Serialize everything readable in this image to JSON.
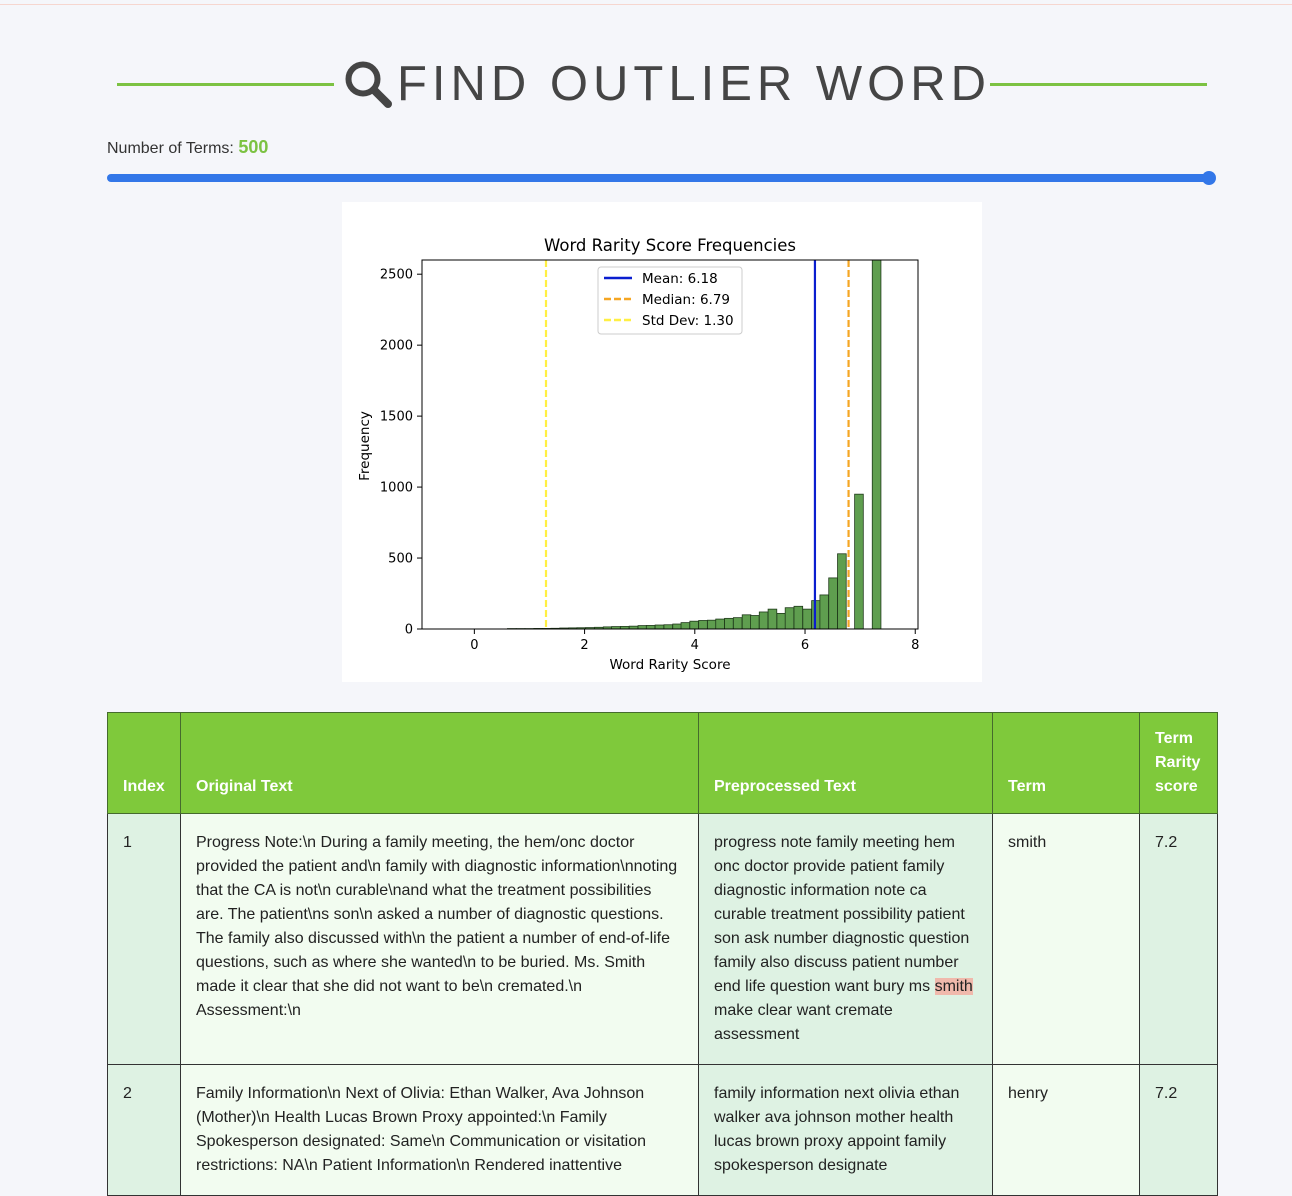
{
  "header": {
    "title": "FIND OUTLIER WORD",
    "icon": "search-icon",
    "accent_color": "#7cc242"
  },
  "terms_control": {
    "label": "Number of Terms:",
    "value": "500",
    "slider_fraction": 1.0,
    "slider_color": "#3377e8"
  },
  "chart_data": {
    "type": "bar",
    "title": "Word Rarity Score Frequencies",
    "xlabel": "Word Rarity Score",
    "ylabel": "Frequency",
    "xlim": [
      -0.95,
      8.05
    ],
    "ylim": [
      0,
      2600
    ],
    "xticks": [
      0,
      2,
      4,
      6,
      8
    ],
    "yticks": [
      0,
      500,
      1000,
      1500,
      2000,
      2500
    ],
    "bar_color": "#5f9e4f",
    "bin_width": 0.1575,
    "bins": [
      {
        "x": 0.6,
        "value": 3
      },
      {
        "x": 0.76,
        "value": 3
      },
      {
        "x": 0.92,
        "value": 3
      },
      {
        "x": 1.08,
        "value": 4
      },
      {
        "x": 1.23,
        "value": 4
      },
      {
        "x": 1.39,
        "value": 5
      },
      {
        "x": 1.55,
        "value": 7
      },
      {
        "x": 1.71,
        "value": 8
      },
      {
        "x": 1.86,
        "value": 9
      },
      {
        "x": 2.02,
        "value": 10
      },
      {
        "x": 2.18,
        "value": 12
      },
      {
        "x": 2.34,
        "value": 15
      },
      {
        "x": 2.49,
        "value": 17
      },
      {
        "x": 2.65,
        "value": 18
      },
      {
        "x": 2.81,
        "value": 20
      },
      {
        "x": 2.97,
        "value": 24
      },
      {
        "x": 3.12,
        "value": 25
      },
      {
        "x": 3.28,
        "value": 28
      },
      {
        "x": 3.44,
        "value": 30
      },
      {
        "x": 3.6,
        "value": 35
      },
      {
        "x": 3.75,
        "value": 45
      },
      {
        "x": 3.91,
        "value": 55
      },
      {
        "x": 4.07,
        "value": 60
      },
      {
        "x": 4.23,
        "value": 62
      },
      {
        "x": 4.38,
        "value": 70
      },
      {
        "x": 4.54,
        "value": 75
      },
      {
        "x": 4.7,
        "value": 80
      },
      {
        "x": 4.86,
        "value": 100
      },
      {
        "x": 5.01,
        "value": 95
      },
      {
        "x": 5.17,
        "value": 120
      },
      {
        "x": 5.33,
        "value": 140
      },
      {
        "x": 5.49,
        "value": 110
      },
      {
        "x": 5.64,
        "value": 150
      },
      {
        "x": 5.8,
        "value": 160
      },
      {
        "x": 5.96,
        "value": 140
      },
      {
        "x": 6.12,
        "value": 200
      },
      {
        "x": 6.27,
        "value": 240
      },
      {
        "x": 6.43,
        "value": 360
      },
      {
        "x": 6.59,
        "value": 530
      },
      {
        "x": 6.75,
        "value": 0
      },
      {
        "x": 6.9,
        "value": 950
      },
      {
        "x": 7.06,
        "value": 0
      },
      {
        "x": 7.22,
        "value": 2600
      }
    ],
    "lines": [
      {
        "label": "Mean: 6.18",
        "x": 6.18,
        "color": "#0a1ecf",
        "style": "solid"
      },
      {
        "label": "Median: 6.79",
        "x": 6.79,
        "color": "#f5a623",
        "style": "dashed"
      },
      {
        "label": "Std Dev: 1.30",
        "x": 1.3,
        "color": "#ffef44",
        "style": "dashed"
      }
    ],
    "legend_position": "top-center"
  },
  "table": {
    "headers": {
      "index": "Index",
      "original": "Original Text",
      "preprocessed": "Preprocessed Text",
      "term": "Term",
      "score": "Term Rarity score"
    },
    "rows": [
      {
        "index": "1",
        "original": "Progress Note:\\n During a family meeting, the hem/onc doctor provided the patient and\\n family with diagnostic information\\nnoting that the CA is not\\n curable\\nand what the treatment possibilities are. The patient\\ns son\\n asked a number of diagnostic questions. The family also discussed with\\n the patient a number of end-of-life questions, such as where she wanted\\n to be buried. Ms. Smith made it clear that she did not want to be\\n cremated.\\n Assessment:\\n",
        "pre_before": "progress note family meeting hem onc doctor provide patient family diagnostic information note ca curable treatment possibility patient son ask number diagnostic question family also discuss patient number end life question want bury ms ",
        "pre_term": "smith",
        "pre_after": " make clear want cremate assessment",
        "term": "smith",
        "score": "7.2"
      },
      {
        "index": "2",
        "original": "Family Information\\n Next of Olivia: Ethan Walker, Ava Johnson (Mother)\\n Health Lucas Brown Proxy appointed:\\n Family Spokesperson designated: Same\\n Communication or visitation restrictions: NA\\n Patient Information\\n Rendered inattentive",
        "pre_before": "family information next olivia ethan walker ava johnson mother health lucas brown proxy appoint family spokesperson designate",
        "pre_term": "",
        "pre_after": "",
        "term": "henry",
        "score": "7.2"
      }
    ]
  }
}
